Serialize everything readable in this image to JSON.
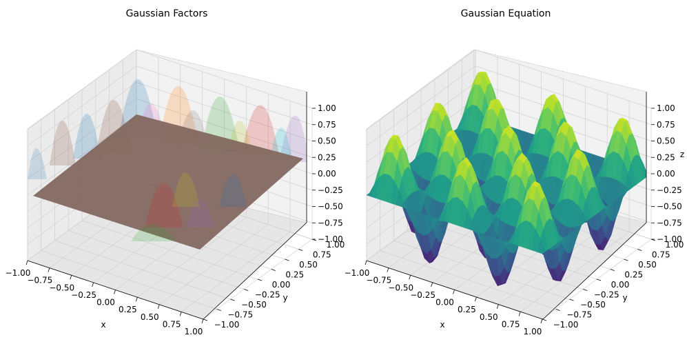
{
  "chart_data": [
    {
      "type": "surface3d",
      "title": "Gaussian Factors",
      "xlabel": "x",
      "ylabel": "y",
      "zlabel": "",
      "xlim": [
        -1.0,
        1.0
      ],
      "ylim": [
        -1.0,
        1.0
      ],
      "zlim": [
        -1.0,
        1.0
      ],
      "xticks": [
        "−1.00",
        "−0.75",
        "−0.50",
        "−0.25",
        "0.00",
        "0.25",
        "0.50",
        "0.75",
        "1.00"
      ],
      "yticks": [
        "−1.00",
        "−0.75",
        "−0.50",
        "−0.25",
        "0.00",
        "0.25",
        "0.50",
        "0.75",
        "1.00"
      ],
      "zticks": [
        "−1.00",
        "−0.75",
        "−0.50",
        "−0.25",
        "0.00",
        "0.25",
        "0.50",
        "0.75",
        "1.00"
      ],
      "grid": true,
      "surface": "flat plane z = 0 with translucent Gaussian factor peaks",
      "colors": [
        "#1f77b4",
        "#ff7f0e",
        "#2ca02c",
        "#d62728",
        "#9467bd",
        "#8c564b",
        "#e377c2",
        "#7f7f7f",
        "#bcbd22",
        "#17becf"
      ]
    },
    {
      "type": "surface3d",
      "title": "Gaussian Equation",
      "xlabel": "x",
      "ylabel": "y",
      "zlabel": "z",
      "xlim": [
        -1.0,
        1.0
      ],
      "ylim": [
        -1.0,
        1.0
      ],
      "zlim": [
        -1.0,
        1.0
      ],
      "xticks": [
        "−1.00",
        "−0.75",
        "−0.50",
        "−0.25",
        "0.00",
        "0.25",
        "0.50",
        "0.75",
        "1.00"
      ],
      "yticks": [
        "−1.00",
        "−0.75",
        "−0.50",
        "−0.25",
        "0.00",
        "0.25",
        "0.50",
        "0.75",
        "1.00"
      ],
      "zticks": [
        "−1.00",
        "−0.75",
        "−0.50",
        "−0.25",
        "0.00",
        "0.25",
        "0.50",
        "0.75",
        "1.00"
      ],
      "grid": true,
      "colormap": "viridis",
      "surface": "oscillating periodic peaks pattern"
    }
  ]
}
